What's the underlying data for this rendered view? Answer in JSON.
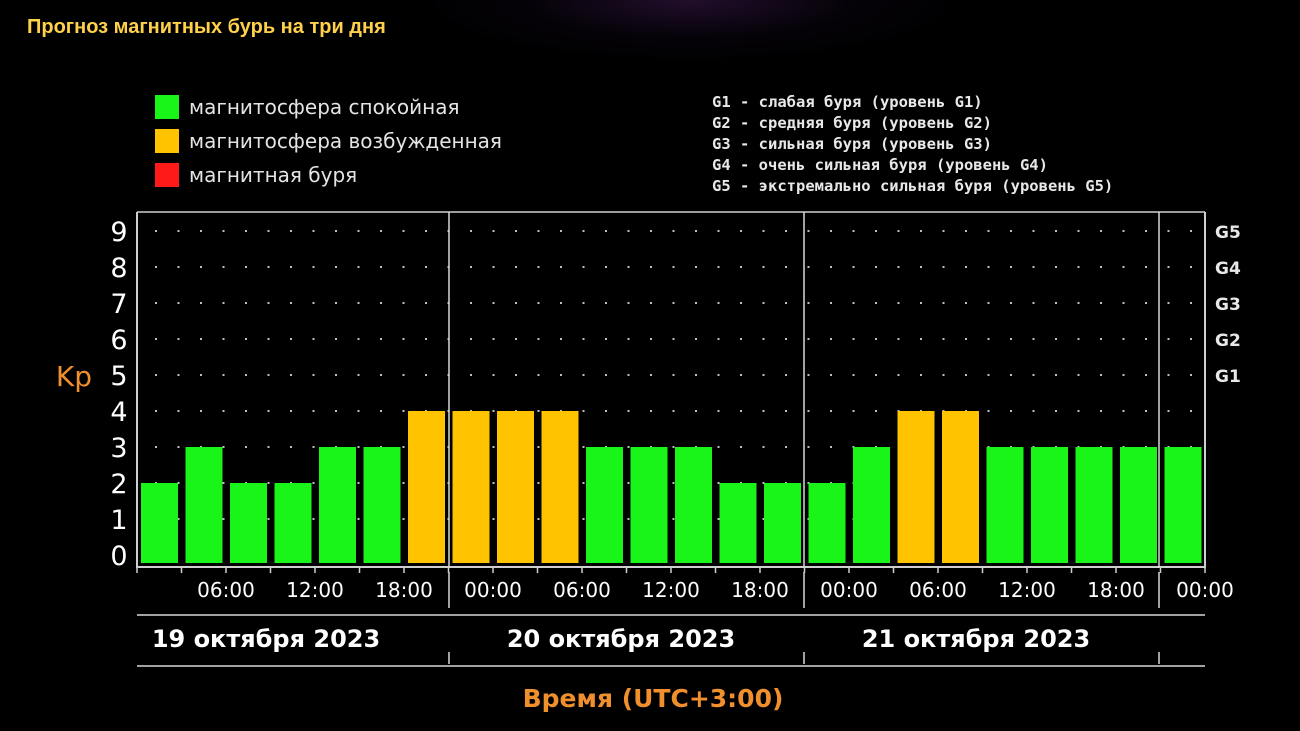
{
  "header": {
    "title": "Прогноз магнитных бурь на три дня"
  },
  "legend": {
    "items": [
      {
        "label": "магнитосфера спокойная",
        "color": "#19f519"
      },
      {
        "label": "магнитосфера возбужденная",
        "color": "#ffc300"
      },
      {
        "label": "магнитная буря",
        "color": "#ff1a1a"
      }
    ]
  },
  "g_scale": {
    "items": [
      "G1 - слабая буря (уровень G1)",
      "G2 - средняя буря (уровень G2)",
      "G3 - сильная буря (уровень G3)",
      "G4 - очень сильная буря (уровень G4)",
      "G5 - экстремально сильная буря (уровень G5)"
    ]
  },
  "colors": {
    "quiet": "#19f519",
    "active": "#ffc300",
    "storm": "#ff1a1a",
    "axis_label": "#ef8f2e",
    "grid": "#ffffff"
  },
  "chart_data": {
    "type": "bar",
    "title": "Прогноз магнитных бурь на три дня",
    "ylabel": "Kp",
    "xlabel": "Время (UTC+3:00)",
    "ylim": [
      0,
      9
    ],
    "yticks": [
      "0",
      "1",
      "2",
      "3",
      "4",
      "5",
      "6",
      "7",
      "8",
      "9"
    ],
    "right_axis": {
      "labels": [
        "G1",
        "G2",
        "G3",
        "G4",
        "G5"
      ],
      "values": [
        5,
        6,
        7,
        8,
        9
      ]
    },
    "days": [
      "19 октября 2023",
      "20 октября 2023",
      "21 октября 2023"
    ],
    "time_ticks": [
      "06:00",
      "12:00",
      "18:00",
      "00:00",
      "06:00",
      "12:00",
      "18:00",
      "00:00",
      "06:00",
      "12:00",
      "18:00",
      "00:00"
    ],
    "interval_hours": 3,
    "values": [
      2,
      3,
      2,
      2,
      3,
      3,
      4,
      4,
      4,
      4,
      3,
      3,
      3,
      2,
      2,
      2,
      3,
      4,
      4,
      3,
      3,
      3,
      3,
      3
    ],
    "levels": [
      "quiet",
      "quiet",
      "quiet",
      "quiet",
      "quiet",
      "quiet",
      "active",
      "active",
      "active",
      "active",
      "quiet",
      "quiet",
      "quiet",
      "quiet",
      "quiet",
      "quiet",
      "quiet",
      "active",
      "active",
      "quiet",
      "quiet",
      "quiet",
      "quiet",
      "quiet"
    ],
    "grid": true,
    "legend_position": "top-left"
  }
}
